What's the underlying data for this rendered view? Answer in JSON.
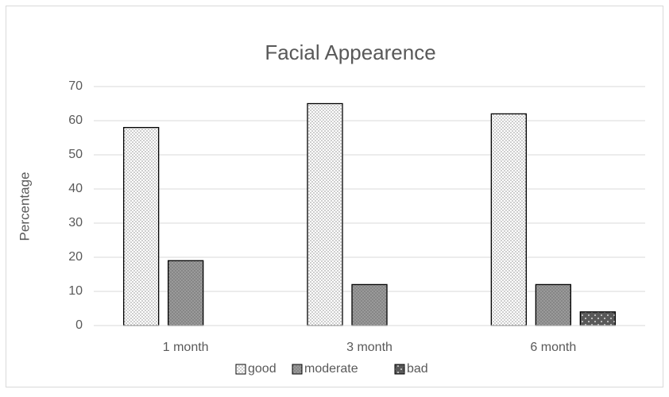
{
  "chart_data": {
    "type": "bar",
    "title": "Facial Appearence",
    "y_label": "Percentage",
    "categories": [
      "1 month",
      "3 month",
      "6 month"
    ],
    "series": [
      {
        "name": "good",
        "color": "#ffffff",
        "values": [
          58,
          65,
          62
        ]
      },
      {
        "name": "moderate",
        "color": "#9a9a9a",
        "values": [
          19,
          12,
          12
        ]
      },
      {
        "name": "bad",
        "color": "#595959",
        "values": [
          0,
          0,
          4
        ]
      }
    ],
    "ylim": [
      0,
      70
    ],
    "yticks": [
      0,
      10,
      20,
      30,
      40,
      50,
      60,
      70
    ],
    "grid": true,
    "legend": "bottom"
  }
}
